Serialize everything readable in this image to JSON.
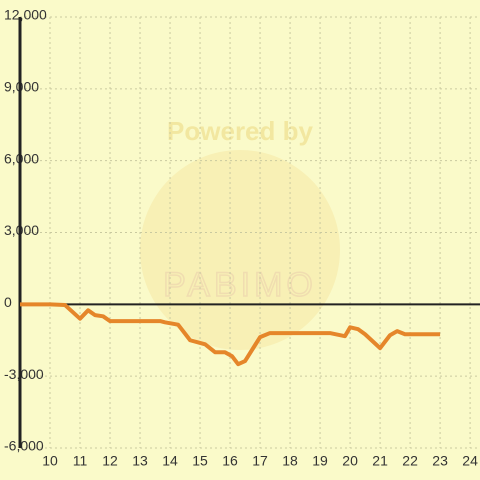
{
  "chart_data": {
    "type": "line",
    "watermark": [
      "Powered by",
      "PABIMO"
    ],
    "x": [
      9,
      10,
      10.5,
      11,
      11.27,
      11.5,
      11.77,
      12,
      13.67,
      13.83,
      14.27,
      14.67,
      15.17,
      15.5,
      15.83,
      16.07,
      16.27,
      16.5,
      17,
      17.33,
      19.33,
      19.83,
      20,
      20.27,
      20.5,
      21,
      21.33,
      21.57,
      21.83,
      23
    ],
    "series": [
      {
        "color": "#e5862a",
        "values": [
          0,
          0,
          -30,
          -600,
          -250,
          -450,
          -500,
          -700,
          -700,
          -750,
          -850,
          -1500,
          -1670,
          -2000,
          -2000,
          -2170,
          -2500,
          -2370,
          -1370,
          -1200,
          -1200,
          -1330,
          -960,
          -1040,
          -1250,
          -1830,
          -1290,
          -1120,
          -1250,
          -1250
        ]
      }
    ],
    "xlim": [
      9,
      24.33
    ],
    "xticks": [
      10,
      11,
      12,
      13,
      14,
      15,
      16,
      17,
      18,
      19,
      20,
      21,
      22,
      23,
      24
    ],
    "ylim": [
      -6000,
      12000
    ],
    "yticks": [
      {
        "value": -6000,
        "label": "-6,000"
      },
      {
        "value": -3000,
        "label": "-3,000"
      },
      0,
      {
        "value": 3000,
        "label": "3,000"
      },
      {
        "value": 6000,
        "label": "6,000"
      },
      {
        "value": 9000,
        "label": "9,000"
      },
      {
        "value": 12000,
        "label": "12,000"
      }
    ],
    "grid": true
  }
}
